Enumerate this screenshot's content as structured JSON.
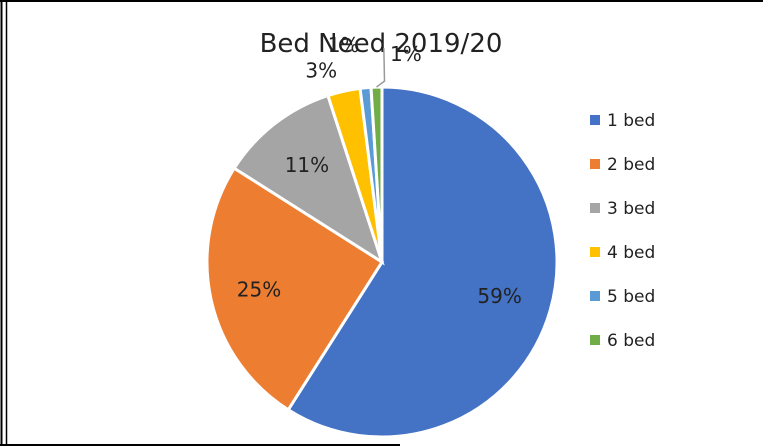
{
  "chart_data": {
    "type": "pie",
    "title": "Bed Need 2019/20",
    "categories": [
      "1 bed",
      "2 bed",
      "3 bed",
      "4 bed",
      "5 bed",
      "6 bed"
    ],
    "values": [
      59,
      25,
      11,
      3,
      1,
      1
    ],
    "value_labels": [
      "59%",
      "25%",
      "11%",
      "3%",
      "1%",
      "1%"
    ],
    "colors": [
      "#4472C4",
      "#ED7D31",
      "#A5A5A5",
      "#FFC000",
      "#5B9BD5",
      "#70AD47"
    ],
    "legend_position": "right"
  }
}
